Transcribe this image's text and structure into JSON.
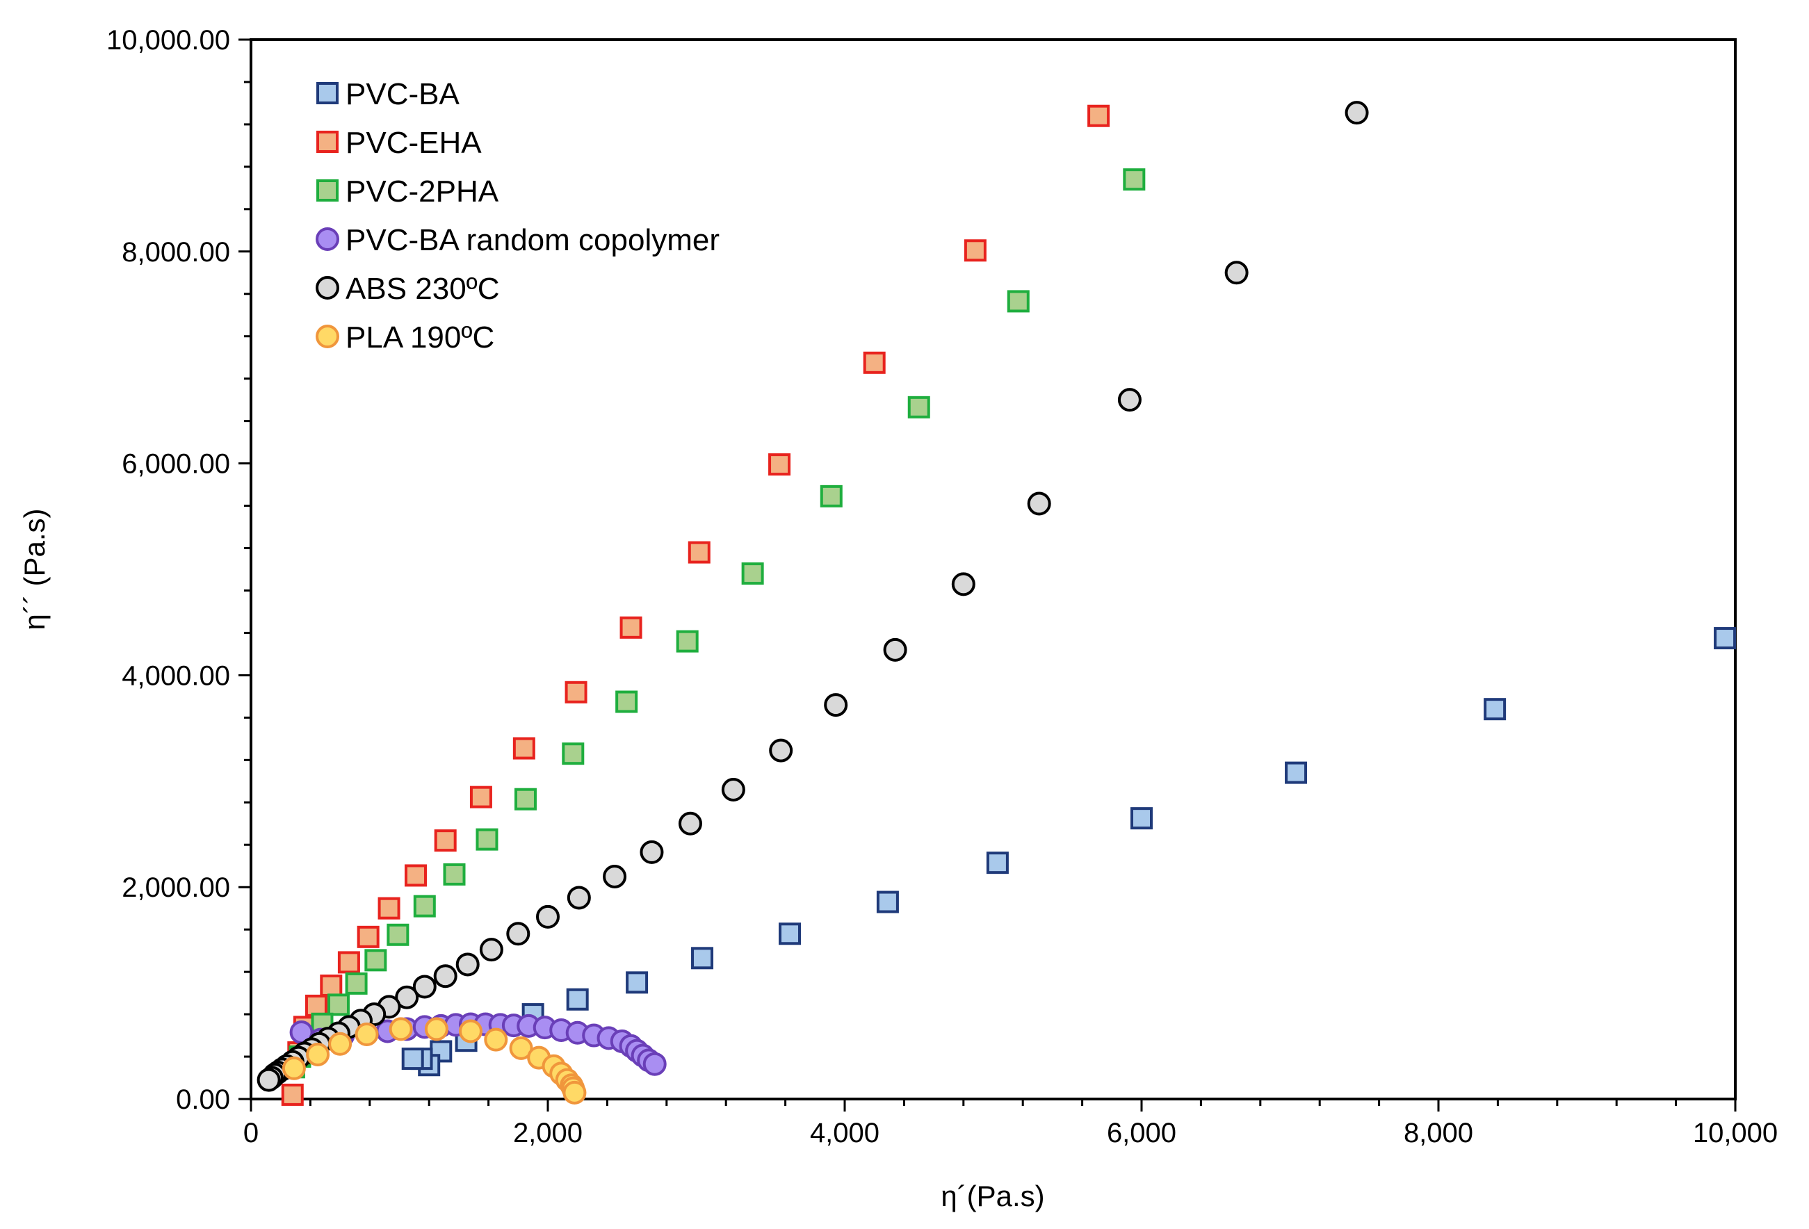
{
  "chart_data": {
    "type": "scatter",
    "xlabel": "η´(Pa.s)",
    "ylabel": "η´´ (Pa.s)",
    "xlim": [
      0,
      10000
    ],
    "ylim": [
      0,
      10000
    ],
    "x_ticks": [
      "0",
      "2,000",
      "4,000",
      "6,000",
      "8,000",
      "10,000"
    ],
    "y_ticks": [
      "0.00",
      "2,000.00",
      "4,000.00",
      "6,000.00",
      "8,000.00",
      "10,000.00"
    ],
    "grid": false,
    "legend_position": "top-left",
    "series": [
      {
        "name": "PVC-BA",
        "marker": "square",
        "fill": "#a9c9eb",
        "stroke": "#1f3a7a",
        "points": [
          [
            9930,
            4350
          ],
          [
            8380,
            3680
          ],
          [
            7040,
            3080
          ],
          [
            6000,
            2650
          ],
          [
            5030,
            2230
          ],
          [
            4290,
            1860
          ],
          [
            3630,
            1560
          ],
          [
            3040,
            1330
          ],
          [
            2600,
            1100
          ],
          [
            2200,
            940
          ],
          [
            1900,
            800
          ],
          [
            1450,
            550
          ],
          [
            1280,
            450
          ],
          [
            1200,
            320
          ],
          [
            1150,
            380
          ],
          [
            1090,
            380
          ]
        ]
      },
      {
        "name": "PVC-EHA",
        "marker": "square",
        "fill": "#f4b183",
        "stroke": "#e8231e",
        "points": [
          [
            5710,
            9280
          ],
          [
            4880,
            8010
          ],
          [
            4200,
            6950
          ],
          [
            3560,
            5990
          ],
          [
            3020,
            5160
          ],
          [
            2560,
            4450
          ],
          [
            2190,
            3840
          ],
          [
            1840,
            3310
          ],
          [
            1550,
            2850
          ],
          [
            1310,
            2440
          ],
          [
            1110,
            2110
          ],
          [
            930,
            1800
          ],
          [
            790,
            1530
          ],
          [
            660,
            1290
          ],
          [
            540,
            1070
          ],
          [
            440,
            880
          ],
          [
            360,
            680
          ],
          [
            320,
            440
          ],
          [
            280,
            40
          ]
        ]
      },
      {
        "name": "PVC-2PHA",
        "marker": "square",
        "fill": "#a9d18e",
        "stroke": "#1fae3e",
        "points": [
          [
            5950,
            8680
          ],
          [
            5170,
            7530
          ],
          [
            4500,
            6530
          ],
          [
            3910,
            5690
          ],
          [
            3380,
            4960
          ],
          [
            2940,
            4320
          ],
          [
            2530,
            3750
          ],
          [
            2170,
            3260
          ],
          [
            1850,
            2830
          ],
          [
            1590,
            2450
          ],
          [
            1370,
            2120
          ],
          [
            1170,
            1820
          ],
          [
            990,
            1550
          ],
          [
            840,
            1310
          ],
          [
            710,
            1090
          ],
          [
            590,
            890
          ],
          [
            480,
            710
          ],
          [
            390,
            550
          ],
          [
            330,
            400
          ],
          [
            290,
            300
          ]
        ]
      },
      {
        "name": "PVC-BA random copolymer",
        "marker": "circle",
        "fill": "#a98ef2",
        "stroke": "#6a3fb8",
        "points": [
          [
            340,
            630
          ],
          [
            470,
            560
          ],
          [
            620,
            600
          ],
          [
            780,
            620
          ],
          [
            920,
            640
          ],
          [
            1050,
            660
          ],
          [
            1170,
            680
          ],
          [
            1280,
            690
          ],
          [
            1380,
            700
          ],
          [
            1480,
            705
          ],
          [
            1580,
            705
          ],
          [
            1680,
            700
          ],
          [
            1770,
            695
          ],
          [
            1870,
            690
          ],
          [
            1980,
            675
          ],
          [
            2090,
            650
          ],
          [
            2200,
            625
          ],
          [
            2310,
            600
          ],
          [
            2410,
            575
          ],
          [
            2500,
            545
          ],
          [
            2560,
            500
          ],
          [
            2600,
            455
          ],
          [
            2640,
            410
          ],
          [
            2680,
            365
          ],
          [
            2720,
            330
          ]
        ]
      },
      {
        "name": "ABS 230ºC",
        "marker": "circle",
        "fill": "#d9d9d9",
        "stroke": "#000000",
        "points": [
          [
            7450,
            9310
          ],
          [
            6640,
            7800
          ],
          [
            5920,
            6600
          ],
          [
            5310,
            5620
          ],
          [
            4800,
            4860
          ],
          [
            4340,
            4240
          ],
          [
            3940,
            3720
          ],
          [
            3570,
            3290
          ],
          [
            3250,
            2920
          ],
          [
            2960,
            2600
          ],
          [
            2700,
            2330
          ],
          [
            2450,
            2100
          ],
          [
            2210,
            1900
          ],
          [
            2000,
            1720
          ],
          [
            1800,
            1560
          ],
          [
            1620,
            1410
          ],
          [
            1460,
            1270
          ],
          [
            1310,
            1160
          ],
          [
            1170,
            1060
          ],
          [
            1050,
            960
          ],
          [
            930,
            870
          ],
          [
            830,
            800
          ],
          [
            740,
            740
          ],
          [
            660,
            680
          ],
          [
            590,
            620
          ],
          [
            520,
            570
          ],
          [
            460,
            520
          ],
          [
            410,
            470
          ],
          [
            360,
            430
          ],
          [
            320,
            390
          ],
          [
            280,
            350
          ],
          [
            240,
            310
          ],
          [
            210,
            280
          ],
          [
            180,
            250
          ],
          [
            160,
            230
          ],
          [
            140,
            200
          ],
          [
            120,
            180
          ]
        ]
      },
      {
        "name": "PLA 190ºC",
        "marker": "circle",
        "fill": "#ffd966",
        "stroke": "#f0963c",
        "points": [
          [
            290,
            290
          ],
          [
            450,
            420
          ],
          [
            600,
            520
          ],
          [
            780,
            610
          ],
          [
            1010,
            660
          ],
          [
            1250,
            660
          ],
          [
            1480,
            640
          ],
          [
            1650,
            560
          ],
          [
            1820,
            480
          ],
          [
            1940,
            390
          ],
          [
            2040,
            310
          ],
          [
            2090,
            240
          ],
          [
            2130,
            180
          ],
          [
            2160,
            130
          ],
          [
            2170,
            100
          ],
          [
            2180,
            60
          ]
        ]
      }
    ]
  }
}
